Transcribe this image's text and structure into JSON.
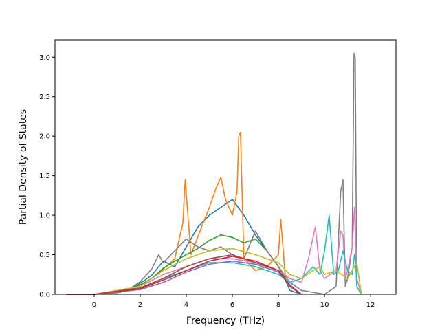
{
  "chart_data": {
    "type": "line",
    "xlabel": "Frequency (THz)",
    "ylabel": "Partial Density of States",
    "xlim": [
      -1.7,
      13.1
    ],
    "ylim": [
      0,
      3.22
    ],
    "xticks": [
      "0",
      "2",
      "4",
      "6",
      "8",
      "10",
      "12"
    ],
    "yticks": [
      "0.0",
      "0.5",
      "1.0",
      "1.5",
      "2.0",
      "2.5",
      "3.0"
    ],
    "grid": false,
    "legend": "none",
    "series": [
      {
        "color": "#1f77b4",
        "x": [
          -1.2,
          0,
          1,
          1.5,
          2,
          2.5,
          3,
          3.5,
          4,
          4.5,
          5,
          5.5,
          6,
          6.5,
          7,
          7.5,
          8,
          8.3,
          8.5,
          9
        ],
        "y": [
          0,
          0,
          0.02,
          0.06,
          0.14,
          0.24,
          0.42,
          0.35,
          0.6,
          0.85,
          1.0,
          1.1,
          1.2,
          1.0,
          0.75,
          0.55,
          0.35,
          0.18,
          0.05,
          0
        ]
      },
      {
        "color": "#ff7f0e",
        "x": [
          -1.2,
          0,
          1,
          1.5,
          2,
          2.5,
          3,
          3.5,
          3.85,
          3.95,
          4.2,
          4.6,
          5,
          5.3,
          5.5,
          5.7,
          6,
          6.2,
          6.28,
          6.35,
          6.5,
          7,
          7.5,
          8,
          8.1,
          8.3,
          8.5,
          9
        ],
        "y": [
          0,
          0,
          0.02,
          0.05,
          0.12,
          0.2,
          0.32,
          0.45,
          0.9,
          1.45,
          0.5,
          0.8,
          1.1,
          1.35,
          1.48,
          1.2,
          1.0,
          1.3,
          2.0,
          2.05,
          0.45,
          0.3,
          0.35,
          0.5,
          0.95,
          0.2,
          0.1,
          0
        ]
      },
      {
        "color": "#2ca02c",
        "x": [
          -1.2,
          0,
          1,
          1.5,
          2,
          2.5,
          3,
          3.5,
          4,
          4.5,
          5,
          5.5,
          6,
          6.5,
          7,
          7.5,
          8,
          8.5,
          9
        ],
        "y": [
          0,
          0,
          0.02,
          0.05,
          0.12,
          0.2,
          0.33,
          0.42,
          0.5,
          0.58,
          0.68,
          0.75,
          0.72,
          0.65,
          0.7,
          0.55,
          0.35,
          0.1,
          0
        ]
      },
      {
        "color": "#7f7f7f",
        "x": [
          -1.2,
          0,
          1,
          1.5,
          2,
          2.5,
          2.8,
          3,
          3.5,
          4,
          4.5,
          5,
          5.5,
          6,
          6.5,
          7,
          7.5,
          8,
          8.5,
          9,
          10,
          10.5,
          10.7,
          10.8,
          10.9,
          11,
          11.2,
          11.28,
          11.33,
          11.4,
          11.6
        ],
        "y": [
          0,
          0,
          0.02,
          0.06,
          0.16,
          0.32,
          0.5,
          0.4,
          0.55,
          0.7,
          0.6,
          0.55,
          0.6,
          0.5,
          0.45,
          0.8,
          0.55,
          0.35,
          0.15,
          0.05,
          0,
          0.1,
          1.3,
          1.45,
          0.1,
          0.2,
          0.6,
          3.05,
          3.0,
          0.1,
          0
        ]
      },
      {
        "color": "#e377c2",
        "x": [
          -1.2,
          0,
          2,
          3,
          4,
          5,
          6,
          7,
          8,
          8.5,
          9,
          9.3,
          9.6,
          9.8,
          10,
          10.5,
          10.7,
          10.8,
          10.9,
          11,
          11.2,
          11.3,
          11.4,
          11.6
        ],
        "y": [
          0,
          0,
          0.1,
          0.25,
          0.35,
          0.45,
          0.45,
          0.4,
          0.3,
          0.2,
          0.15,
          0.45,
          0.85,
          0.3,
          0.2,
          0.3,
          0.8,
          0.75,
          0.2,
          0.3,
          0.6,
          1.1,
          0.2,
          0
        ]
      },
      {
        "color": "#17becf",
        "x": [
          -1.2,
          0,
          2,
          3,
          4,
          5,
          6,
          7,
          8,
          8.5,
          9,
          9.5,
          9.8,
          10,
          10.2,
          10.4,
          10.6,
          10.8,
          11,
          11.2,
          11.3,
          11.35,
          11.4,
          11.6
        ],
        "y": [
          0,
          0,
          0.08,
          0.2,
          0.3,
          0.4,
          0.4,
          0.35,
          0.25,
          0.15,
          0.2,
          0.35,
          0.25,
          0.55,
          1.0,
          0.25,
          0.3,
          0.55,
          0.3,
          0.25,
          0.5,
          0.45,
          0.1,
          0
        ]
      },
      {
        "color": "#bcbd22",
        "x": [
          -1.2,
          0,
          2,
          3,
          4,
          5,
          6,
          7,
          8,
          8.5,
          9,
          9.5,
          9.8,
          10,
          10.5,
          11,
          11.4,
          11.6
        ],
        "y": [
          0,
          0,
          0.1,
          0.3,
          0.45,
          0.55,
          0.58,
          0.5,
          0.4,
          0.25,
          0.2,
          0.3,
          0.35,
          0.25,
          0.3,
          0.2,
          0.4,
          0
        ]
      },
      {
        "color": "#9467bd",
        "x": [
          -1.2,
          0,
          2,
          3,
          4,
          5,
          6,
          7,
          8,
          8.5,
          9
        ],
        "y": [
          0,
          0,
          0.06,
          0.15,
          0.28,
          0.38,
          0.42,
          0.38,
          0.28,
          0.12,
          0
        ]
      },
      {
        "color": "#8c564b",
        "x": [
          -1.2,
          0,
          2,
          3,
          4,
          5,
          6,
          7,
          8,
          8.5,
          9
        ],
        "y": [
          0,
          0,
          0.08,
          0.2,
          0.35,
          0.45,
          0.5,
          0.4,
          0.3,
          0.1,
          0
        ]
      },
      {
        "color": "#d62728",
        "x": [
          -1.2,
          0,
          2,
          3,
          4,
          5,
          6,
          7,
          8,
          8.5,
          9
        ],
        "y": [
          0,
          0,
          0.07,
          0.18,
          0.3,
          0.42,
          0.48,
          0.42,
          0.3,
          0.1,
          0
        ]
      }
    ]
  }
}
